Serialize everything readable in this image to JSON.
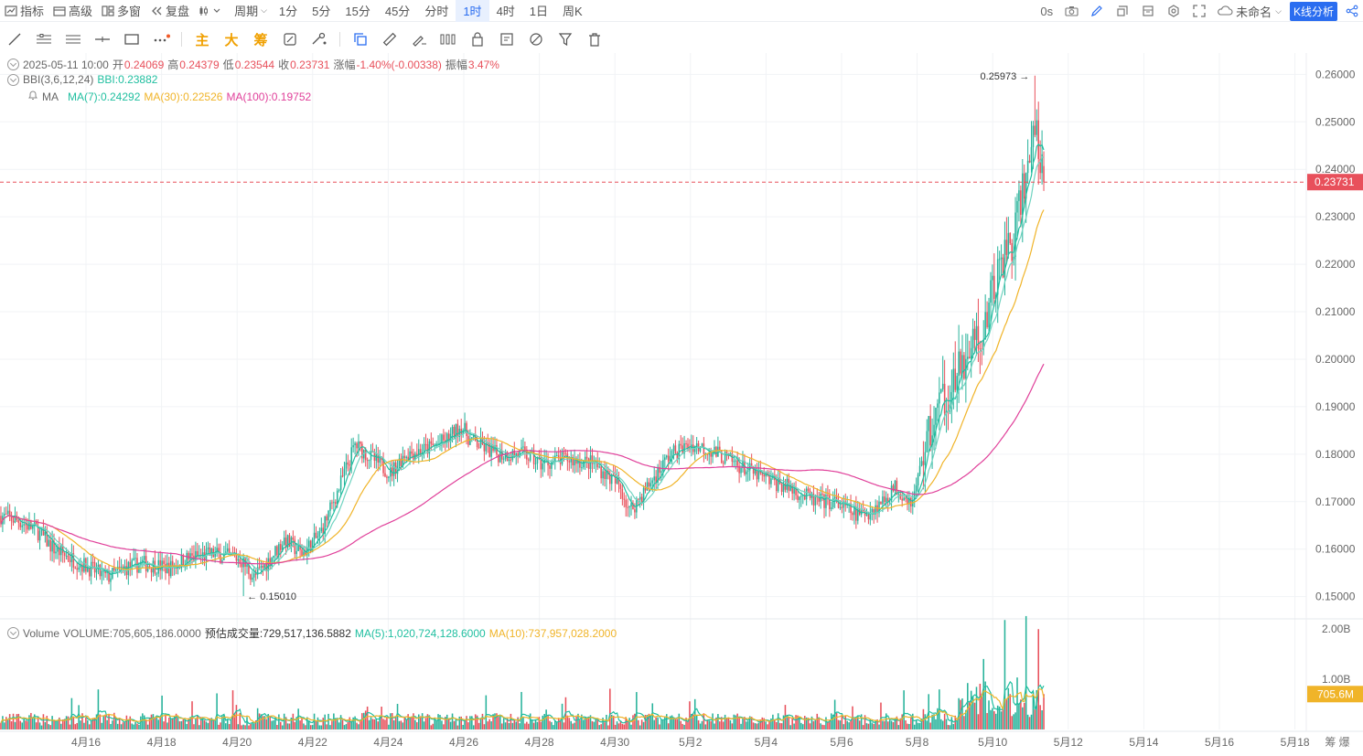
{
  "toolbar": {
    "indicators": "指标",
    "advanced": "高级",
    "multi_window": "多窗",
    "replay": "复盘",
    "period": "周期",
    "intervals": [
      "1分",
      "5分",
      "15分",
      "45分",
      "分时",
      "1时",
      "4时",
      "1日",
      "周K"
    ],
    "active_interval": "1时",
    "countdown": "0s",
    "layout_name": "未命名",
    "kline_analysis": "K线分析"
  },
  "drawing_tools": {
    "main": "主",
    "big": "大",
    "chips": "筹"
  },
  "ohlc": {
    "datetime": "2025-05-11 10:00",
    "open_label": "开",
    "open": "0.24069",
    "high_label": "高",
    "high": "0.24379",
    "low_label": "低",
    "low": "0.23544",
    "close_label": "收",
    "close": "0.23731",
    "change_label": "涨幅",
    "change": "-1.40%(-0.00338)",
    "amplitude_label": "振幅",
    "amplitude": "3.47%"
  },
  "bbi": {
    "label": "BBI(3,6,12,24)",
    "value": "BBI:0.23882"
  },
  "ma": {
    "label": "MA",
    "ma7": "MA(7):0.24292",
    "ma30": "MA(30):0.22526",
    "ma100": "MA(100):0.19752"
  },
  "volume_legend": {
    "label": "Volume",
    "volume": "VOLUME:705,605,186.0000",
    "estimate": "预估成交量:729,517,136.5882",
    "ma5": "MA(5):1,020,724,128.6000",
    "ma10": "MA(10):737,957,028.2000"
  },
  "colors": {
    "up": "#26b29a",
    "down": "#e8505b",
    "ma7": "#20bfa0",
    "ma30": "#f0b429",
    "ma100": "#e0409a",
    "accent": "#2a6df0"
  },
  "chart_data": {
    "type": "candlestick",
    "interval": "1时",
    "y_ticks": [
      "0.26000",
      "0.25000",
      "0.24000",
      "0.23000",
      "0.22000",
      "0.21000",
      "0.20000",
      "0.19000",
      "0.18000",
      "0.17000",
      "0.16000",
      "0.15000"
    ],
    "ylim": [
      0.1455,
      0.2645
    ],
    "x_ticks": [
      "4月16",
      "4月18",
      "4月20",
      "4月22",
      "4月24",
      "4月26",
      "4月28",
      "4月30",
      "5月2",
      "5月4",
      "5月6",
      "5月8",
      "5月10",
      "5月12",
      "5月14",
      "5月16",
      "5月18"
    ],
    "last_price": "0.23731",
    "high_marker": "0.25973",
    "low_marker": "0.15010",
    "volume_ticks": [
      "2.00B",
      "1.00B"
    ],
    "volume_last": "705.6M",
    "price_anchors": [
      [
        0,
        0.167
      ],
      [
        10,
        0.166
      ],
      [
        20,
        0.164
      ],
      [
        30,
        0.16
      ],
      [
        45,
        0.157
      ],
      [
        60,
        0.154
      ],
      [
        70,
        0.156
      ],
      [
        80,
        0.157
      ],
      [
        95,
        0.156
      ],
      [
        105,
        0.158
      ],
      [
        120,
        0.159
      ],
      [
        135,
        0.158
      ],
      [
        143,
        0.154
      ],
      [
        150,
        0.157
      ],
      [
        160,
        0.162
      ],
      [
        170,
        0.159
      ],
      [
        180,
        0.163
      ],
      [
        190,
        0.172
      ],
      [
        200,
        0.182
      ],
      [
        210,
        0.179
      ],
      [
        220,
        0.176
      ],
      [
        228,
        0.18
      ],
      [
        240,
        0.181
      ],
      [
        252,
        0.183
      ],
      [
        260,
        0.186
      ],
      [
        265,
        0.183
      ],
      [
        280,
        0.18
      ],
      [
        295,
        0.18
      ],
      [
        305,
        0.178
      ],
      [
        320,
        0.179
      ],
      [
        335,
        0.178
      ],
      [
        350,
        0.173
      ],
      [
        355,
        0.168
      ],
      [
        365,
        0.173
      ],
      [
        378,
        0.18
      ],
      [
        390,
        0.182
      ],
      [
        400,
        0.181
      ],
      [
        415,
        0.178
      ],
      [
        430,
        0.175
      ],
      [
        445,
        0.173
      ],
      [
        460,
        0.17
      ],
      [
        470,
        0.17
      ],
      [
        485,
        0.167
      ],
      [
        495,
        0.169
      ],
      [
        505,
        0.173
      ],
      [
        515,
        0.17
      ],
      [
        522,
        0.182
      ],
      [
        532,
        0.192
      ],
      [
        540,
        0.196
      ],
      [
        548,
        0.204
      ],
      [
        556,
        0.207
      ],
      [
        564,
        0.22
      ],
      [
        572,
        0.226
      ],
      [
        580,
        0.24
      ],
      [
        584,
        0.251
      ],
      [
        586,
        0.243
      ],
      [
        589,
        0.2373
      ]
    ]
  }
}
